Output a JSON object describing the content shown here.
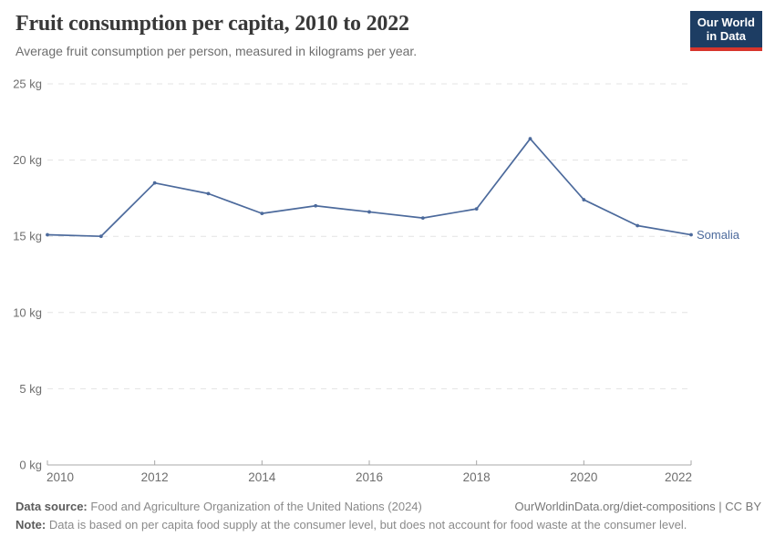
{
  "header": {
    "title": "Fruit consumption per capita, 2010 to 2022",
    "subtitle": "Average fruit consumption per person, measured in kilograms per year."
  },
  "logo": {
    "line1": "Our World",
    "line2": "in Data",
    "bg_color": "#1d3d63",
    "accent_color": "#d7352c"
  },
  "chart_data": {
    "type": "line",
    "title": "Fruit consumption per capita, 2010 to 2022",
    "xlabel": "",
    "ylabel": "kilograms per year",
    "x": [
      2010,
      2011,
      2012,
      2013,
      2014,
      2015,
      2016,
      2017,
      2018,
      2019,
      2020,
      2021,
      2022
    ],
    "series": [
      {
        "name": "Somalia",
        "color": "#4C6A9C",
        "values": [
          15.1,
          15.0,
          18.5,
          17.8,
          16.5,
          17.0,
          16.6,
          16.2,
          16.8,
          21.4,
          17.4,
          15.7,
          15.1
        ]
      }
    ],
    "xlim": [
      2010,
      2022
    ],
    "ylim": [
      0,
      25
    ],
    "xticks": [
      2010,
      2012,
      2014,
      2016,
      2018,
      2020,
      2022
    ],
    "yticks": [
      0,
      5,
      10,
      15,
      20,
      25
    ],
    "ytick_suffix": " kg",
    "grid": "horizontal-dashed",
    "grid_color": "#e3e3e3",
    "axis_color": "#a8a8a8",
    "tick_label_color": "#6e6e6e",
    "legend_position": "line-end-label"
  },
  "footer": {
    "datasource_label": "Data source:",
    "datasource_text": "Food and Agriculture Organization of the United Nations (2024)",
    "link_text": "OurWorldinData.org/diet-compositions | CC BY",
    "note_label": "Note:",
    "note_text": "Data is based on per capita food supply at the consumer level, but does not account for food waste at the consumer level."
  }
}
